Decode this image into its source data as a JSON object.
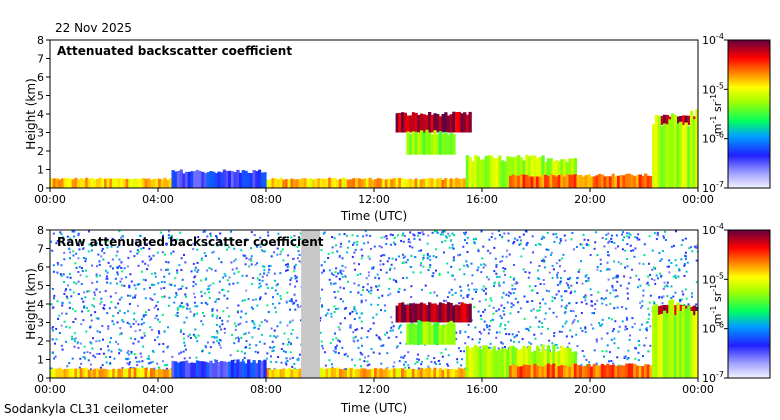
{
  "date": "22 Nov 2025",
  "footer": "Sodankyla CL31 ceilometer",
  "chart_data": [
    {
      "type": "heatmap",
      "title": "Attenuated backscatter coefficient",
      "xlabel": "Time (UTC)",
      "ylabel": "Height (km)",
      "xticks": [
        "00:00",
        "04:00",
        "08:00",
        "12:00",
        "16:00",
        "20:00",
        "00:00"
      ],
      "xlim_hours": [
        0,
        24
      ],
      "yticks": [
        "0",
        "1",
        "2",
        "3",
        "4",
        "5",
        "6",
        "7",
        "8"
      ],
      "ylim": [
        0,
        8
      ],
      "colorbar": {
        "label_base": "m",
        "label_exp1": "-1",
        "label_mid": " sr",
        "label_exp2": "-1",
        "scale": "log",
        "range": [
          1e-07,
          0.0001
        ],
        "ticks": [
          {
            "base": "10",
            "exp": "-4",
            "value": 0.0001
          },
          {
            "base": "10",
            "exp": "-5",
            "value": 1e-05
          },
          {
            "base": "10",
            "exp": "-6",
            "value": 1e-06
          },
          {
            "base": "10",
            "exp": "-7",
            "value": 1e-07
          }
        ]
      },
      "features": [
        {
          "kind": "surface_layer",
          "start_h": 0,
          "end_h": 24,
          "top_km": 0.5,
          "level": 0.72
        },
        {
          "kind": "aerosol_blob",
          "start_h": 4.5,
          "end_h": 8.0,
          "top_km": 0.9,
          "level": 0.22
        },
        {
          "kind": "cloud_layer",
          "start_h": 12.8,
          "end_h": 15.6,
          "base_km": 3.0,
          "top_km": 4.0,
          "level": 0.95
        },
        {
          "kind": "cloud_fall",
          "start_h": 13.2,
          "end_h": 15.0,
          "base_km": 1.8,
          "top_km": 3.0,
          "level": 0.55
        },
        {
          "kind": "precip_column",
          "start_h": 15.4,
          "end_h": 19.5,
          "base_km": 0.0,
          "top_km": 1.6,
          "level": 0.6
        },
        {
          "kind": "low_cloud",
          "start_h": 17.0,
          "end_h": 22.6,
          "base_km": 0.0,
          "top_km": 0.7,
          "level": 0.8
        },
        {
          "kind": "cloud_layer",
          "start_h": 22.5,
          "end_h": 24.0,
          "base_km": 3.4,
          "top_km": 3.9,
          "level": 0.95
        },
        {
          "kind": "precip_column",
          "start_h": 22.3,
          "end_h": 24.0,
          "base_km": 0.0,
          "top_km": 3.8,
          "level": 0.6
        }
      ]
    },
    {
      "type": "heatmap",
      "title": "Raw attenuated backscatter coefficient",
      "xlabel": "Time (UTC)",
      "ylabel": "Height (km)",
      "xticks": [
        "00:00",
        "04:00",
        "08:00",
        "12:00",
        "16:00",
        "20:00",
        "00:00"
      ],
      "xlim_hours": [
        0,
        24
      ],
      "yticks": [
        "0",
        "1",
        "2",
        "3",
        "4",
        "5",
        "6",
        "7",
        "8"
      ],
      "ylim": [
        0,
        8
      ],
      "colorbar": {
        "label_base": "m",
        "label_exp1": "-1",
        "label_mid": " sr",
        "label_exp2": "-1",
        "scale": "log",
        "range": [
          1e-07,
          0.0001
        ],
        "ticks": [
          {
            "base": "10",
            "exp": "-4",
            "value": 0.0001
          },
          {
            "base": "10",
            "exp": "-5",
            "value": 1e-05
          },
          {
            "base": "10",
            "exp": "-6",
            "value": 1e-06
          },
          {
            "base": "10",
            "exp": "-7",
            "value": 1e-07
          }
        ]
      },
      "noise_background": true,
      "missing_intervals_h": [
        [
          9.3,
          10.0
        ]
      ],
      "features": [
        {
          "kind": "surface_layer",
          "start_h": 0,
          "end_h": 24,
          "top_km": 0.5,
          "level": 0.72
        },
        {
          "kind": "aerosol_blob",
          "start_h": 4.5,
          "end_h": 8.0,
          "top_km": 0.9,
          "level": 0.22
        },
        {
          "kind": "cloud_layer",
          "start_h": 12.8,
          "end_h": 15.6,
          "base_km": 3.0,
          "top_km": 4.0,
          "level": 0.95
        },
        {
          "kind": "cloud_fall",
          "start_h": 13.2,
          "end_h": 15.0,
          "base_km": 1.8,
          "top_km": 3.0,
          "level": 0.55
        },
        {
          "kind": "precip_column",
          "start_h": 15.4,
          "end_h": 19.5,
          "base_km": 0.0,
          "top_km": 1.6,
          "level": 0.6
        },
        {
          "kind": "low_cloud",
          "start_h": 17.0,
          "end_h": 22.6,
          "base_km": 0.0,
          "top_km": 0.7,
          "level": 0.8
        },
        {
          "kind": "cloud_layer",
          "start_h": 22.5,
          "end_h": 24.0,
          "base_km": 3.4,
          "top_km": 3.9,
          "level": 0.95
        },
        {
          "kind": "precip_column",
          "start_h": 22.3,
          "end_h": 24.0,
          "base_km": 0.0,
          "top_km": 3.8,
          "level": 0.6
        }
      ]
    }
  ]
}
